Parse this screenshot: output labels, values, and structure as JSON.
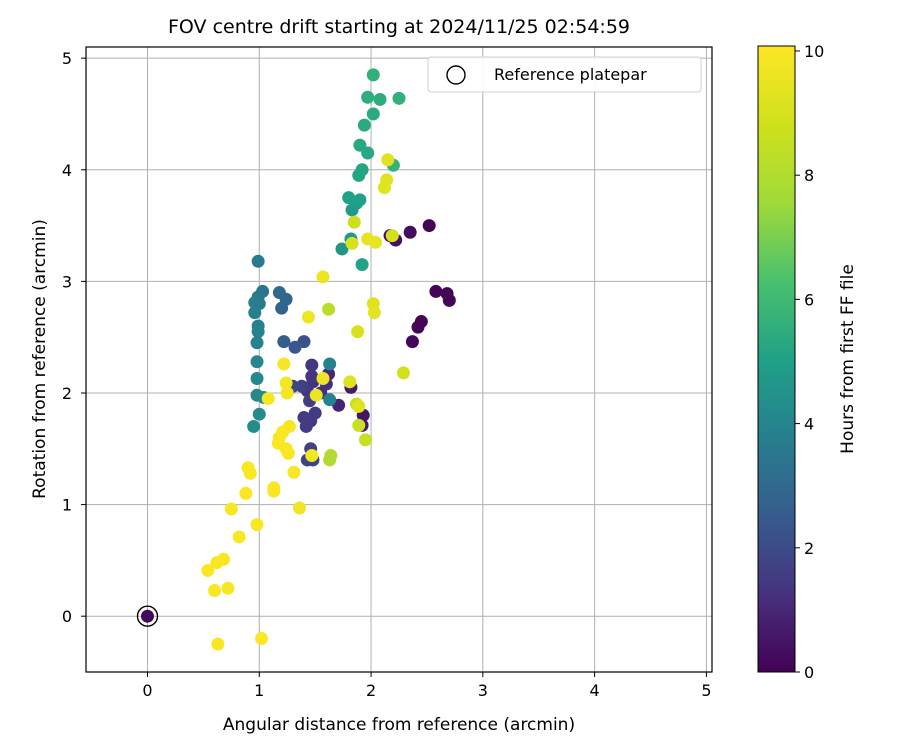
{
  "chart_data": {
    "type": "scatter",
    "title": "FOV centre drift starting at 2024/11/25 02:54:59",
    "xlabel": "Angular distance from reference (arcmin)",
    "ylabel": "Rotation from reference (arcmin)",
    "xlim": [
      -0.55,
      5.05
    ],
    "ylim": [
      -0.5,
      5.1
    ],
    "xticks": [
      0,
      1,
      2,
      3,
      4,
      5
    ],
    "yticks": [
      0,
      1,
      2,
      3,
      4,
      5
    ],
    "grid": true,
    "legend": {
      "position": "top-right",
      "entries": [
        "Reference platepar"
      ]
    },
    "reference_point": {
      "x": 0,
      "y": 0
    },
    "colorbar": {
      "label": "Hours from first FF file",
      "colormap": "viridis",
      "range": [
        0,
        10.08
      ],
      "ticks": [
        0,
        2,
        4,
        6,
        8,
        10
      ]
    },
    "points": [
      {
        "x": 0.0,
        "y": 0.0,
        "c": 0.2
      },
      {
        "x": 2.52,
        "y": 3.5,
        "c": 0.1
      },
      {
        "x": 2.58,
        "y": 2.91,
        "c": 0.1
      },
      {
        "x": 2.68,
        "y": 2.89,
        "c": 0.1
      },
      {
        "x": 2.7,
        "y": 2.83,
        "c": 0.1
      },
      {
        "x": 2.45,
        "y": 2.64,
        "c": 0.1
      },
      {
        "x": 2.42,
        "y": 2.59,
        "c": 0.1
      },
      {
        "x": 2.37,
        "y": 2.46,
        "c": 0.2
      },
      {
        "x": 2.35,
        "y": 3.44,
        "c": 0.3
      },
      {
        "x": 2.22,
        "y": 3.37,
        "c": 0.4
      },
      {
        "x": 2.17,
        "y": 3.41,
        "c": 0.5
      },
      {
        "x": 1.93,
        "y": 1.8,
        "c": 0.5
      },
      {
        "x": 1.92,
        "y": 1.71,
        "c": 0.6
      },
      {
        "x": 1.82,
        "y": 2.05,
        "c": 0.7
      },
      {
        "x": 1.71,
        "y": 1.89,
        "c": 0.9
      },
      {
        "x": 1.62,
        "y": 2.17,
        "c": 1.0
      },
      {
        "x": 1.6,
        "y": 2.08,
        "c": 1.2
      },
      {
        "x": 1.55,
        "y": 2.0,
        "c": 1.2
      },
      {
        "x": 1.48,
        "y": 2.1,
        "c": 1.3
      },
      {
        "x": 1.43,
        "y": 2.02,
        "c": 1.4
      },
      {
        "x": 1.47,
        "y": 2.15,
        "c": 1.4
      },
      {
        "x": 1.47,
        "y": 2.25,
        "c": 1.4
      },
      {
        "x": 1.5,
        "y": 1.82,
        "c": 1.5
      },
      {
        "x": 1.46,
        "y": 1.75,
        "c": 1.5
      },
      {
        "x": 1.42,
        "y": 1.7,
        "c": 1.5
      },
      {
        "x": 1.4,
        "y": 1.78,
        "c": 1.6
      },
      {
        "x": 1.45,
        "y": 1.93,
        "c": 1.6
      },
      {
        "x": 1.38,
        "y": 2.06,
        "c": 1.7
      },
      {
        "x": 1.46,
        "y": 1.5,
        "c": 1.7
      },
      {
        "x": 1.43,
        "y": 1.4,
        "c": 1.8
      },
      {
        "x": 1.48,
        "y": 1.4,
        "c": 1.8
      },
      {
        "x": 1.3,
        "y": 2.06,
        "c": 1.9
      },
      {
        "x": 1.4,
        "y": 2.46,
        "c": 2.2
      },
      {
        "x": 1.32,
        "y": 2.41,
        "c": 2.4
      },
      {
        "x": 1.22,
        "y": 2.46,
        "c": 2.6
      },
      {
        "x": 1.2,
        "y": 2.76,
        "c": 2.8
      },
      {
        "x": 1.24,
        "y": 2.84,
        "c": 2.9
      },
      {
        "x": 1.18,
        "y": 2.9,
        "c": 3.0
      },
      {
        "x": 1.03,
        "y": 2.91,
        "c": 3.4
      },
      {
        "x": 0.99,
        "y": 2.86,
        "c": 3.5
      },
      {
        "x": 1.0,
        "y": 2.8,
        "c": 3.6
      },
      {
        "x": 0.96,
        "y": 2.81,
        "c": 3.7
      },
      {
        "x": 0.96,
        "y": 2.72,
        "c": 3.8
      },
      {
        "x": 0.99,
        "y": 2.6,
        "c": 3.8
      },
      {
        "x": 0.99,
        "y": 2.55,
        "c": 3.9
      },
      {
        "x": 0.98,
        "y": 2.45,
        "c": 3.9
      },
      {
        "x": 0.98,
        "y": 2.28,
        "c": 4.0
      },
      {
        "x": 0.98,
        "y": 2.13,
        "c": 4.1
      },
      {
        "x": 0.98,
        "y": 1.98,
        "c": 4.1
      },
      {
        "x": 1.04,
        "y": 1.96,
        "c": 4.2
      },
      {
        "x": 1.0,
        "y": 1.81,
        "c": 4.2
      },
      {
        "x": 0.95,
        "y": 1.7,
        "c": 4.3
      },
      {
        "x": 0.99,
        "y": 3.18,
        "c": 3.6
      },
      {
        "x": 1.63,
        "y": 2.26,
        "c": 3.8
      },
      {
        "x": 1.63,
        "y": 1.94,
        "c": 3.9
      },
      {
        "x": 1.74,
        "y": 3.29,
        "c": 4.6
      },
      {
        "x": 1.82,
        "y": 3.38,
        "c": 4.7
      },
      {
        "x": 1.83,
        "y": 3.64,
        "c": 4.8
      },
      {
        "x": 1.87,
        "y": 3.7,
        "c": 4.9
      },
      {
        "x": 1.8,
        "y": 3.75,
        "c": 5.0
      },
      {
        "x": 1.9,
        "y": 3.73,
        "c": 5.0
      },
      {
        "x": 1.92,
        "y": 3.15,
        "c": 5.1
      },
      {
        "x": 1.89,
        "y": 3.95,
        "c": 5.2
      },
      {
        "x": 1.92,
        "y": 4.0,
        "c": 5.2
      },
      {
        "x": 1.97,
        "y": 4.15,
        "c": 5.3
      },
      {
        "x": 1.9,
        "y": 4.22,
        "c": 5.3
      },
      {
        "x": 1.94,
        "y": 4.4,
        "c": 5.4
      },
      {
        "x": 2.02,
        "y": 4.5,
        "c": 5.4
      },
      {
        "x": 1.97,
        "y": 4.65,
        "c": 5.5
      },
      {
        "x": 2.08,
        "y": 4.63,
        "c": 5.5
      },
      {
        "x": 2.25,
        "y": 4.64,
        "c": 5.6
      },
      {
        "x": 2.02,
        "y": 4.85,
        "c": 5.6
      },
      {
        "x": 2.2,
        "y": 4.04,
        "c": 5.7
      },
      {
        "x": 1.95,
        "y": 1.58,
        "c": 8.6
      },
      {
        "x": 1.87,
        "y": 1.9,
        "c": 8.5
      },
      {
        "x": 1.89,
        "y": 1.71,
        "c": 8.6
      },
      {
        "x": 1.64,
        "y": 1.44,
        "c": 8.0
      },
      {
        "x": 1.63,
        "y": 1.4,
        "c": 8.0
      },
      {
        "x": 1.62,
        "y": 2.75,
        "c": 8.2
      },
      {
        "x": 1.85,
        "y": 3.53,
        "c": 8.7
      },
      {
        "x": 1.83,
        "y": 3.34,
        "c": 9.0
      },
      {
        "x": 2.19,
        "y": 3.41,
        "c": 8.9
      },
      {
        "x": 2.15,
        "y": 4.09,
        "c": 9.2
      },
      {
        "x": 2.14,
        "y": 3.91,
        "c": 9.3
      },
      {
        "x": 2.12,
        "y": 3.84,
        "c": 9.3
      },
      {
        "x": 2.29,
        "y": 2.18,
        "c": 8.9
      },
      {
        "x": 1.88,
        "y": 2.55,
        "c": 9.1
      },
      {
        "x": 2.02,
        "y": 2.8,
        "c": 9.3
      },
      {
        "x": 2.03,
        "y": 2.72,
        "c": 9.4
      },
      {
        "x": 1.97,
        "y": 3.38,
        "c": 9.5
      },
      {
        "x": 2.04,
        "y": 3.35,
        "c": 9.5
      },
      {
        "x": 1.57,
        "y": 3.04,
        "c": 9.6
      },
      {
        "x": 1.81,
        "y": 2.1,
        "c": 9.2
      },
      {
        "x": 1.89,
        "y": 1.88,
        "c": 9.3
      },
      {
        "x": 1.44,
        "y": 2.68,
        "c": 9.7
      },
      {
        "x": 1.51,
        "y": 1.98,
        "c": 9.6
      },
      {
        "x": 1.57,
        "y": 2.13,
        "c": 9.7
      },
      {
        "x": 1.47,
        "y": 1.44,
        "c": 9.8
      },
      {
        "x": 1.36,
        "y": 0.97,
        "c": 9.7
      },
      {
        "x": 1.24,
        "y": 2.09,
        "c": 9.8
      },
      {
        "x": 1.25,
        "y": 2.0,
        "c": 9.8
      },
      {
        "x": 1.22,
        "y": 2.26,
        "c": 9.9
      },
      {
        "x": 1.27,
        "y": 1.7,
        "c": 9.9
      },
      {
        "x": 1.21,
        "y": 1.65,
        "c": 10.0
      },
      {
        "x": 1.18,
        "y": 1.6,
        "c": 10.0
      },
      {
        "x": 1.17,
        "y": 1.55,
        "c": 10.0
      },
      {
        "x": 1.24,
        "y": 1.5,
        "c": 10.0
      },
      {
        "x": 1.26,
        "y": 1.46,
        "c": 10.0
      },
      {
        "x": 1.31,
        "y": 1.29,
        "c": 10.0
      },
      {
        "x": 1.08,
        "y": 1.95,
        "c": 9.9
      },
      {
        "x": 1.13,
        "y": 1.15,
        "c": 10.0
      },
      {
        "x": 1.13,
        "y": 1.12,
        "c": 10.0
      },
      {
        "x": 0.9,
        "y": 1.33,
        "c": 10.0
      },
      {
        "x": 0.92,
        "y": 1.28,
        "c": 10.0
      },
      {
        "x": 0.88,
        "y": 1.1,
        "c": 10.0
      },
      {
        "x": 0.75,
        "y": 0.96,
        "c": 10.0
      },
      {
        "x": 0.98,
        "y": 0.82,
        "c": 10.0
      },
      {
        "x": 0.82,
        "y": 0.71,
        "c": 10.0
      },
      {
        "x": 0.68,
        "y": 0.51,
        "c": 10.0
      },
      {
        "x": 0.62,
        "y": 0.48,
        "c": 10.0
      },
      {
        "x": 0.54,
        "y": 0.41,
        "c": 10.0
      },
      {
        "x": 0.72,
        "y": 0.25,
        "c": 10.0
      },
      {
        "x": 0.6,
        "y": 0.23,
        "c": 10.0
      },
      {
        "x": 0.63,
        "y": -0.25,
        "c": 10.0
      },
      {
        "x": 1.02,
        "y": -0.2,
        "c": 10.0
      }
    ]
  }
}
